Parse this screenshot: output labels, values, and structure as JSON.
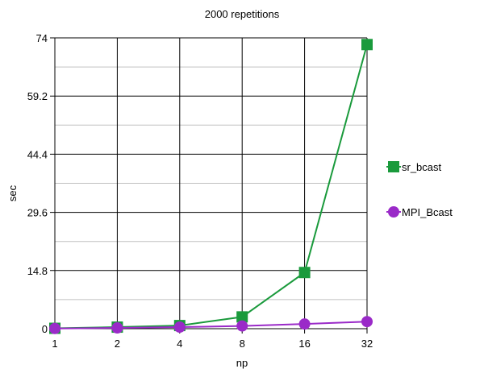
{
  "chart_data": {
    "type": "line",
    "title": "2000 repetitions",
    "xlabel": "np",
    "ylabel": "sec",
    "categories": [
      "1",
      "2",
      "4",
      "8",
      "16",
      "32"
    ],
    "ylim": [
      0,
      74
    ],
    "yticks": [
      "0",
      "14.8",
      "29.6",
      "44.4",
      "59.2",
      "74"
    ],
    "grid": true,
    "legend_position": "right",
    "series": [
      {
        "name": "sr_bcast",
        "values": [
          0.1,
          0.4,
          0.8,
          3.0,
          14.3,
          72.3
        ],
        "color": "#1a9a3c",
        "marker": "square"
      },
      {
        "name": "MPI_Bcast",
        "values": [
          0.05,
          0.2,
          0.4,
          0.7,
          1.2,
          1.8
        ],
        "color": "#9a2ac8",
        "marker": "circle"
      }
    ]
  }
}
